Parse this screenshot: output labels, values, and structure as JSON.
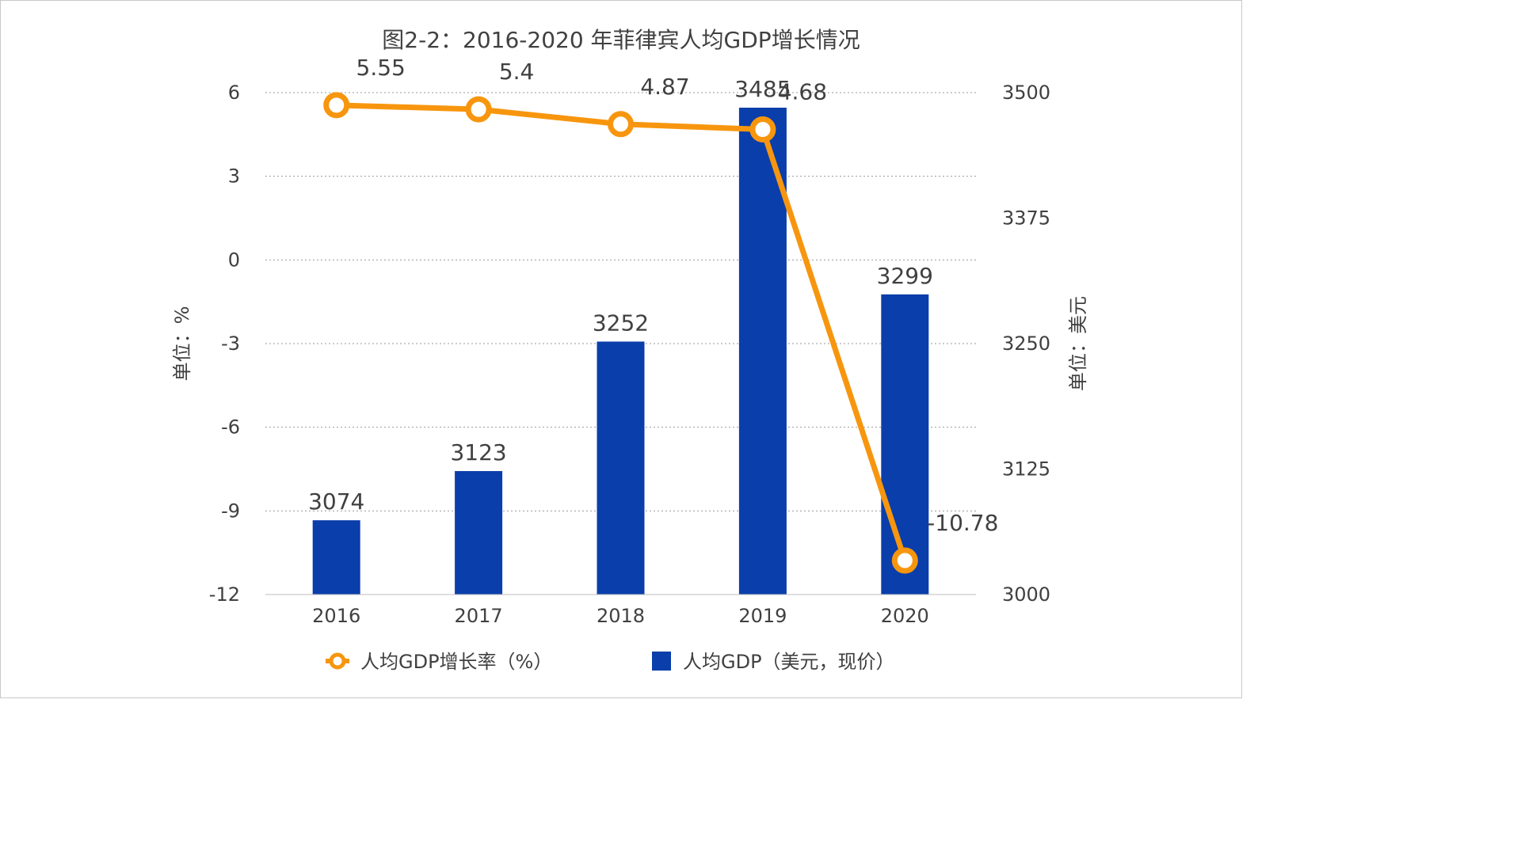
{
  "chart_data": {
    "type": "bar",
    "title": "图2-2：2016-2020 年菲律宾人均GDP增长情况",
    "categories": [
      "2016",
      "2017",
      "2018",
      "2019",
      "2020"
    ],
    "y_left": {
      "label": "单位：%",
      "min": -12,
      "max": 6,
      "ticks": [
        6,
        3,
        0,
        -3,
        -6,
        -9,
        -12
      ]
    },
    "y_right": {
      "label": "单位：美元",
      "min": 3000,
      "max": 3500,
      "ticks": [
        3500,
        3375,
        3250,
        3125,
        3000
      ]
    },
    "grid": true,
    "legend_position": "bottom",
    "series": [
      {
        "name": "人均GDP增长率（%）",
        "type": "line",
        "axis": "left",
        "color": "#F7960E",
        "values": [
          5.55,
          5.4,
          4.87,
          4.68,
          -10.78
        ],
        "labels": [
          "5.55",
          "5.4",
          "4.87",
          "4.68",
          "-10.78"
        ]
      },
      {
        "name": "人均GDP（美元，现价）",
        "type": "bar",
        "axis": "right",
        "color": "#0A3EAA",
        "values": [
          3074,
          3123,
          3252,
          3485,
          3299
        ],
        "labels": [
          "3074",
          "3123",
          "3252",
          "3485",
          "3299"
        ]
      }
    ]
  }
}
